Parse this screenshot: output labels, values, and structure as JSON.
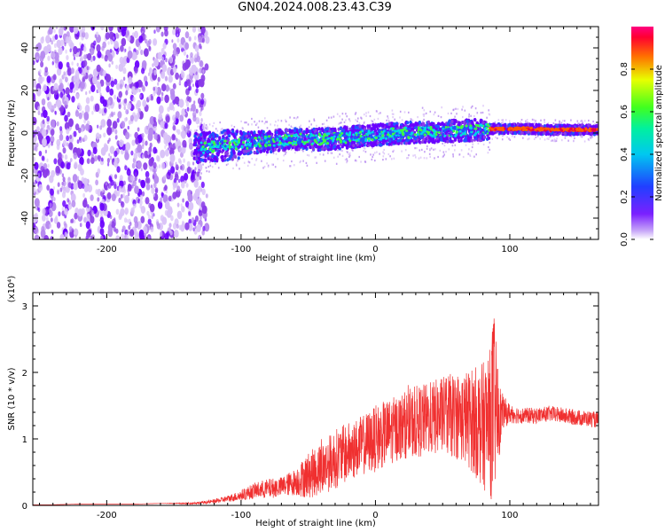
{
  "title": "GN04.2024.008.23.43.C39",
  "colors": {
    "background": "#ffffff",
    "snr_line": "#f03030",
    "spectrogram_palette": [
      "#f0f0ff",
      "#d9c2f8",
      "#b78af0",
      "#8a3ce8",
      "#6a00ff",
      "#2255ff",
      "#00d8e8",
      "#40ff40",
      "#ffe000",
      "#ff6000",
      "#e8004a"
    ]
  },
  "chart_data": [
    {
      "type": "heatmap",
      "title": "GN04.2024.008.23.43.C39",
      "xlabel": "Height of straight line (km)",
      "ylabel": "Frequency (Hz)",
      "xlim": [
        -255,
        166
      ],
      "ylim": [
        -50,
        50
      ],
      "xticks": [
        -200,
        -100,
        0,
        100
      ],
      "xtick_labels": [
        "-200",
        "-100",
        "0",
        "100"
      ],
      "yticks": [
        -40,
        -20,
        0,
        20,
        40
      ],
      "ytick_labels": [
        "-40",
        "-20",
        "0",
        "20",
        "40"
      ],
      "colorbar": {
        "label": "Normalized spectral amplitude",
        "range": [
          0,
          1
        ],
        "ticks": [
          0.0,
          0.2,
          0.4,
          0.6,
          0.8
        ],
        "tick_labels": [
          "0.0",
          "0.2",
          "0.4",
          "0.6",
          "0.8"
        ]
      },
      "regions": [
        {
          "x_range": [
            -255,
            -125
          ],
          "freq_range": [
            -50,
            50
          ],
          "amplitude": 0.15,
          "pattern": "scattered noise"
        },
        {
          "x_range": [
            -135,
            -100
          ],
          "freq_range": [
            -12,
            5
          ],
          "amplitude": 0.35
        },
        {
          "x_range": [
            -100,
            0
          ],
          "freq_range": [
            -8,
            2
          ],
          "amplitude": 0.4
        },
        {
          "x_range": [
            0,
            85
          ],
          "freq_range": [
            -4,
            5
          ],
          "amplitude": 0.55
        },
        {
          "x_range": [
            88,
            166
          ],
          "freq_range": [
            -1,
            4
          ],
          "amplitude": 0.95
        }
      ],
      "ridge": {
        "x": [
          -130,
          -115,
          -100,
          -80,
          -60,
          -40,
          -20,
          0,
          20,
          40,
          60,
          80,
          90,
          110,
          130,
          150,
          166
        ],
        "frequency": [
          -7,
          -6,
          -5,
          -4,
          -3,
          -3,
          -2,
          -1,
          0,
          0.5,
          1,
          1.5,
          2,
          2,
          1.5,
          1.5,
          1.5
        ]
      }
    },
    {
      "type": "line",
      "xlabel": "Height of straight line (km)",
      "ylabel": "SNR (10 * v/v)",
      "y_multiplier": "(x10⁴)",
      "xlim": [
        -255,
        166
      ],
      "ylim": [
        0,
        3.2
      ],
      "xticks": [
        -200,
        -100,
        0,
        100
      ],
      "xtick_labels": [
        "-200",
        "-100",
        "0",
        "100"
      ],
      "yticks": [
        0,
        1,
        2,
        3
      ],
      "ytick_labels": [
        "0",
        "1",
        "2",
        "3"
      ],
      "series": [
        {
          "color": "#f03030",
          "x": [
            -255,
            -240,
            -220,
            -200,
            -180,
            -160,
            -140,
            -130,
            -120,
            -110,
            -100,
            -90,
            -80,
            -70,
            -60,
            -50,
            -40,
            -30,
            -20,
            -10,
            0,
            10,
            20,
            30,
            40,
            50,
            60,
            70,
            80,
            85,
            88,
            92,
            95,
            100,
            110,
            120,
            130,
            140,
            150,
            160,
            166
          ],
          "y": [
            0.01,
            0.01,
            0.02,
            0.02,
            0.02,
            0.03,
            0.03,
            0.04,
            0.06,
            0.1,
            0.15,
            0.22,
            0.25,
            0.28,
            0.35,
            0.45,
            0.55,
            0.7,
            0.8,
            0.9,
            1.0,
            1.1,
            1.2,
            1.25,
            1.3,
            1.35,
            1.35,
            1.3,
            1.2,
            1.25,
            1.5,
            1.3,
            1.4,
            1.38,
            1.35,
            1.35,
            1.38,
            1.35,
            1.32,
            1.3,
            1.28
          ],
          "spread": [
            0,
            0,
            0,
            0,
            0,
            0,
            0.01,
            0.02,
            0.03,
            0.05,
            0.08,
            0.12,
            0.15,
            0.15,
            0.2,
            0.35,
            0.4,
            0.45,
            0.45,
            0.45,
            0.5,
            0.5,
            0.5,
            0.55,
            0.55,
            0.6,
            0.65,
            0.75,
            0.95,
            1.1,
            1.5,
            0.6,
            0.25,
            0.15,
            0.12,
            0.12,
            0.12,
            0.12,
            0.12,
            0.12,
            0.12
          ]
        }
      ]
    }
  ]
}
